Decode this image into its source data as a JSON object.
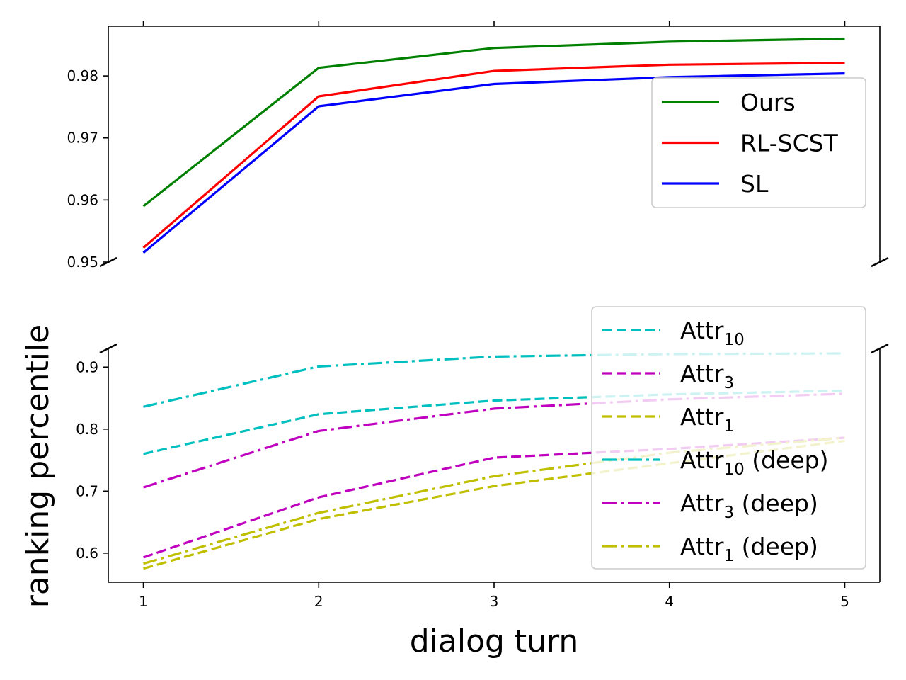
{
  "chart_data": {
    "type": "line",
    "layout": "broken-y-axis",
    "xlabel": "dialog turn",
    "ylabel": "ranking percentile",
    "x": [
      1,
      2,
      3,
      4,
      5
    ],
    "xticks": [
      "1",
      "2",
      "3",
      "4",
      "5"
    ],
    "xlim": [
      0.8,
      5.2
    ],
    "panels": [
      {
        "id": "top",
        "ylim": [
          0.95,
          0.988
        ],
        "yticks": [
          "0.95",
          "0.96",
          "0.97",
          "0.98"
        ],
        "legend_position": "center-right",
        "series": [
          {
            "name": "Ours",
            "color": "#008000",
            "dash": "solid",
            "values": [
              0.959,
              0.9813,
              0.9845,
              0.9855,
              0.986
            ]
          },
          {
            "name": "RL-SCST",
            "color": "#ff0000",
            "dash": "solid",
            "values": [
              0.9523,
              0.9767,
              0.9808,
              0.9818,
              0.9821
            ]
          },
          {
            "name": "SL",
            "color": "#0000ff",
            "dash": "solid",
            "values": [
              0.9515,
              0.9751,
              0.9787,
              0.9798,
              0.9804
            ]
          }
        ]
      },
      {
        "id": "bottom",
        "ylim": [
          0.553,
          0.93
        ],
        "yticks": [
          "0.6",
          "0.7",
          "0.8",
          "0.9"
        ],
        "legend_position": "right",
        "series": [
          {
            "name": "Attr",
            "sub": "10",
            "suffix": "",
            "color": "#00bfbf",
            "dash": "dashed",
            "values": [
              0.76,
              0.824,
              0.846,
              0.856,
              0.862
            ]
          },
          {
            "name": "Attr",
            "sub": "3",
            "suffix": "",
            "color": "#bf00bf",
            "dash": "dashed",
            "values": [
              0.593,
              0.69,
              0.754,
              0.768,
              0.786
            ]
          },
          {
            "name": "Attr",
            "sub": "1",
            "suffix": "",
            "color": "#bfbf00",
            "dash": "dashed",
            "values": [
              0.575,
              0.655,
              0.708,
              0.745,
              0.781
            ]
          },
          {
            "name": "Attr",
            "sub": "10",
            "suffix": " (deep)",
            "color": "#00bfbf",
            "dash": "dashdot",
            "values": [
              0.836,
              0.901,
              0.917,
              0.921,
              0.922
            ]
          },
          {
            "name": "Attr",
            "sub": "3",
            "suffix": " (deep)",
            "color": "#bf00bf",
            "dash": "dashdot",
            "values": [
              0.706,
              0.797,
              0.833,
              0.848,
              0.857
            ]
          },
          {
            "name": "Attr",
            "sub": "1",
            "suffix": " (deep)",
            "color": "#bfbf00",
            "dash": "dashdot",
            "values": [
              0.583,
              0.665,
              0.724,
              0.762,
              0.786
            ]
          }
        ]
      }
    ]
  }
}
